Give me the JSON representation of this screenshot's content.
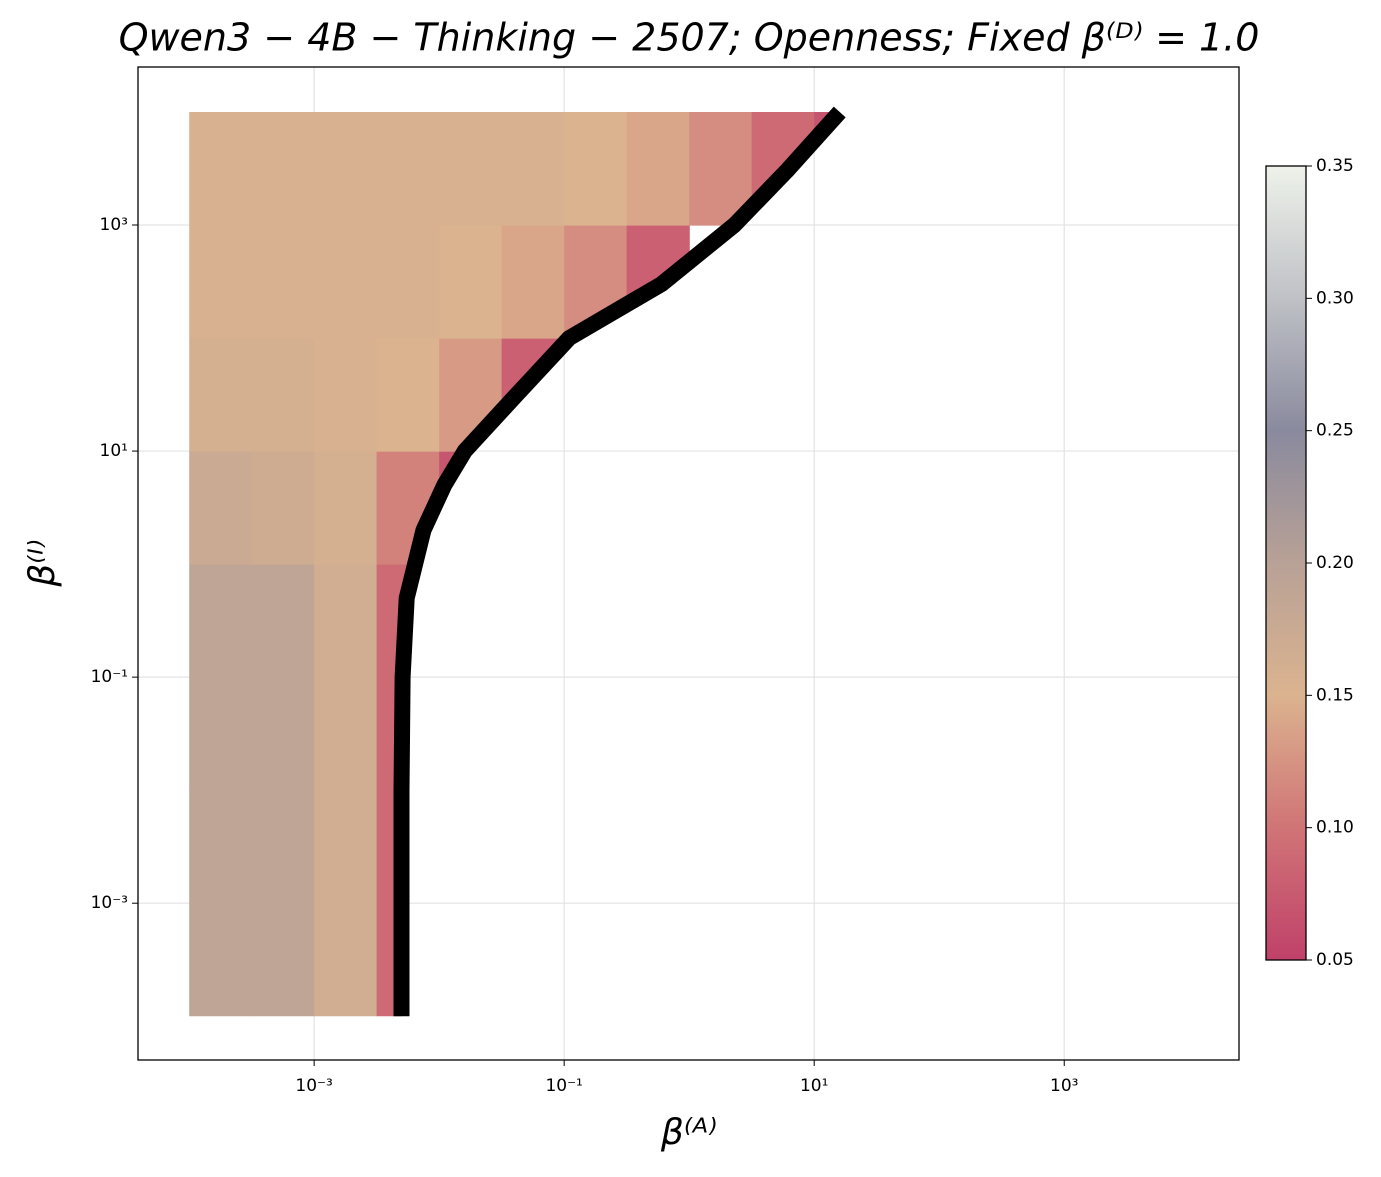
{
  "chart_data": {
    "type": "heatmap",
    "title": "Qwen3 − 4B − Thinking − 2507;  Openness;  Fixed β⁽ᴰ⁾ = 1.0",
    "x_label": "β⁽ᴬ⁾",
    "y_label": "β⁽ᴵ⁾",
    "log_x": true,
    "log_y": true,
    "grid": true,
    "xlim": [
      3.9e-05,
      25000
    ],
    "ylim": [
      4.1e-05,
      25000
    ],
    "xticks": [
      {
        "value": 0.001,
        "label": "10⁻³"
      },
      {
        "value": 0.1,
        "label": "10⁻¹"
      },
      {
        "value": 10,
        "label": "10¹"
      },
      {
        "value": 1000,
        "label": "10³"
      }
    ],
    "yticks": [
      {
        "value": 0.001,
        "label": "10⁻³"
      },
      {
        "value": 0.1,
        "label": "10⁻¹"
      },
      {
        "value": 10,
        "label": "10¹"
      },
      {
        "value": 1000,
        "label": "10³"
      }
    ],
    "x_edges": [
      0.0001,
      0.000316,
      0.001,
      0.00316,
      0.01,
      0.0316,
      0.1,
      0.316,
      1,
      3.16,
      10,
      31.6
    ],
    "y_edges": [
      0.0001,
      0.001,
      0.01,
      0.1,
      1,
      10,
      100,
      1000,
      10000
    ],
    "z": [
      [
        0.19,
        0.19,
        0.165,
        0.09,
        null,
        null,
        null,
        null,
        null,
        null,
        null
      ],
      [
        0.19,
        0.19,
        0.165,
        0.09,
        null,
        null,
        null,
        null,
        null,
        null,
        null
      ],
      [
        0.19,
        0.19,
        0.165,
        0.09,
        null,
        null,
        null,
        null,
        null,
        null,
        null
      ],
      [
        0.19,
        0.19,
        0.165,
        0.09,
        null,
        null,
        null,
        null,
        null,
        null,
        null
      ],
      [
        0.175,
        0.17,
        0.16,
        0.11,
        0.07,
        null,
        null,
        null,
        null,
        null,
        null
      ],
      [
        0.16,
        0.16,
        0.155,
        0.15,
        0.13,
        0.08,
        null,
        null,
        null,
        null,
        null
      ],
      [
        0.155,
        0.155,
        0.155,
        0.155,
        0.15,
        0.14,
        0.12,
        0.08,
        null,
        null,
        null
      ],
      [
        0.155,
        0.155,
        0.155,
        0.155,
        0.155,
        0.155,
        0.15,
        0.14,
        0.12,
        0.09,
        0.07
      ]
    ],
    "boundary": {
      "color": "#000000",
      "x": [
        0.005,
        0.005,
        0.005,
        0.0051,
        0.0055,
        0.0075,
        0.011,
        0.016,
        0.04,
        0.11,
        0.6,
        2.3,
        6,
        16
      ],
      "y": [
        0.0001,
        0.001,
        0.01,
        0.1,
        0.5,
        2,
        5,
        10,
        30,
        100,
        300,
        1000,
        3000,
        10000
      ]
    },
    "colormap": [
      "#c0416a",
      "#d07476",
      "#dbb38f",
      "#b8a196",
      "#8a8a9e",
      "#bfc1c6",
      "#eef2ea"
    ],
    "clim": [
      0.05,
      0.35
    ],
    "cbar_ticks": [
      0.05,
      {
        "value": 0.1,
        "label": "0.10"
      },
      0.15,
      {
        "value": 0.2,
        "label": "0.20"
      },
      0.25,
      {
        "value": 0.3,
        "label": "0.30"
      },
      0.35
    ]
  }
}
